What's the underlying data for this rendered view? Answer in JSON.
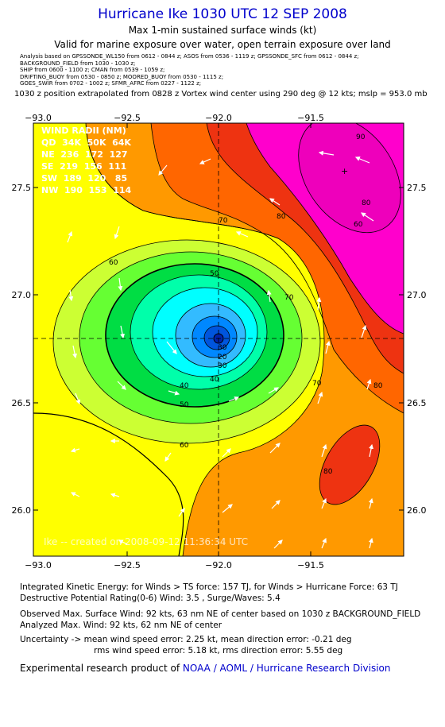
{
  "header": {
    "title": "Hurricane Ike 1030 UTC 12 SEP 2008",
    "subtitle1": "Max 1-min sustained surface winds (kt)",
    "subtitle2": "Valid for marine exposure over water, open terrain exposure over land",
    "analysis_lines": [
      "Analysis based on  GPSSONDE_WL150 from 0612 - 0844 z;  ASOS from 0536 - 1119 z;  GPSSONDE_SFC from 0612 - 0844 z;",
      "BACKGROUND_FIELD from 1030 - 1030 z;",
      "SHIP from 0600 - 1100 z;  CMAN from 0539 - 1059 z;",
      "DRIFTING_BUOY from 0530 - 0850 z;  MOORED_BUOY from 0530 - 1115 z;",
      "GOES_SWIR from 0702 - 1002 z;  SFMR_AFRC from 0227 - 1122 z;"
    ],
    "extrapolation": "1030 z position extrapolated from 0828 z Vortex wind center using 290 deg @ 12 kts; mslp = 953.0 mb"
  },
  "map": {
    "lon_ticks": [
      "−93.0",
      "−92.5",
      "−92.0",
      "−91.5"
    ],
    "lat_ticks": [
      "27.5",
      "27.0",
      "26.5",
      "26.0"
    ],
    "contour_labels": [
      "90",
      "80",
      "70",
      "60",
      "50",
      "40",
      "30",
      "20",
      "30",
      "40",
      "50",
      "60",
      "70",
      "80",
      "80",
      "70",
      "60",
      "80"
    ],
    "wind_radii": {
      "header": "WIND RADII (NM)",
      "rows": [
        "QD  34K  50K  64K",
        "NE  236  172  127",
        "SE  219  156  111",
        "SW  189  120   85",
        "NW  190  153  114"
      ]
    },
    "watermark": "Ike -- created on 2008-09-12  11:36:34 UTC",
    "colors": {
      "magenta": "#ff00cc",
      "red": "#ee3311",
      "dark_orange": "#ff6600",
      "orange": "#ff9900",
      "yellow": "#ffff00",
      "yellow_green": "#ccff33",
      "light_green": "#66ff33",
      "green": "#00dd44",
      "mint": "#00ffaa",
      "cyan": "#00ffff",
      "sky": "#33bbff",
      "blue": "#0066ee"
    }
  },
  "stats": {
    "ike": "Integrated Kinetic Energy:  for Winds > TS force: 157 TJ,  for Winds > Hurricane Force: 63 TJ",
    "dpr": "Destructive Potential Rating(0-6)   Wind: 3.5 , Surge/Waves: 5.4",
    "observed": "Observed Max. Surface Wind: 92 kts, 63 nm NE of center based on 1030 z BACKGROUND_FIELD",
    "analyzed": "Analyzed Max. Wind: 92 kts, 62 nm NE of center",
    "uncertainty1": "Uncertainty -> mean wind speed error: 2.25 kt,   mean direction error:  -0.21 deg",
    "uncertainty2": "rms wind speed error: 5.18 kt,   rms direction error: 5.55 deg"
  },
  "footer": {
    "prefix": "Experimental research product of ",
    "org": "NOAA / AOML / Hurricane Research Division"
  }
}
